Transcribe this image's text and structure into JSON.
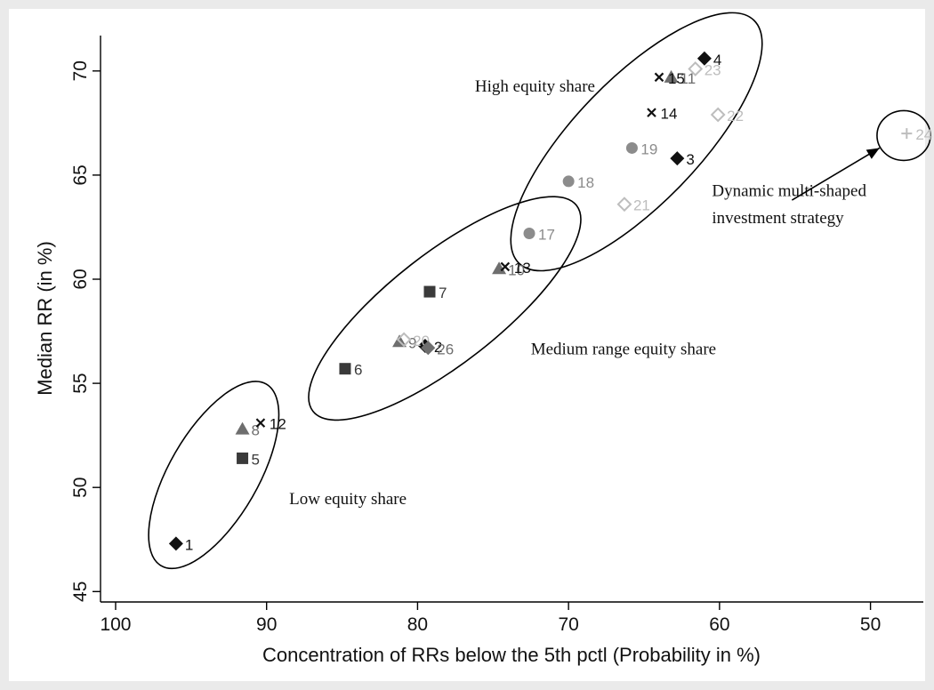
{
  "chart_data": {
    "type": "scatter",
    "xlabel": "Concentration of RRs below the 5th pctl (Probability in %)",
    "ylabel": "Median RR (in %)",
    "x_reversed": true,
    "xlim": [
      101,
      46.5
    ],
    "ylim": [
      44.5,
      71.7
    ],
    "xticks": [
      100,
      90,
      80,
      70,
      60,
      50
    ],
    "yticks": [
      45,
      50,
      55,
      60,
      65,
      70
    ],
    "grid": false,
    "colors": {
      "black": "#111111",
      "darkgray": "#3a3a3a",
      "midgray": "#6e6e6e",
      "lightgray": "#8c8c8c",
      "pale": "#bdbdbd"
    },
    "points": [
      {
        "label": "1",
        "x": 96.0,
        "y": 47.3,
        "marker": "diamond-filled",
        "color": "black"
      },
      {
        "label": "2",
        "x": 79.5,
        "y": 56.8,
        "marker": "diamond-filled",
        "color": "black"
      },
      {
        "label": "3",
        "x": 62.8,
        "y": 65.8,
        "marker": "diamond-filled",
        "color": "black"
      },
      {
        "label": "4",
        "x": 61.0,
        "y": 70.6,
        "marker": "diamond-filled",
        "color": "black"
      },
      {
        "label": "5",
        "x": 91.6,
        "y": 51.4,
        "marker": "square",
        "color": "darkgray"
      },
      {
        "label": "6",
        "x": 84.8,
        "y": 55.7,
        "marker": "square",
        "color": "darkgray"
      },
      {
        "label": "7",
        "x": 79.2,
        "y": 59.4,
        "marker": "square",
        "color": "darkgray"
      },
      {
        "label": "8",
        "x": 91.6,
        "y": 52.8,
        "marker": "triangle",
        "color": "midgray"
      },
      {
        "label": "9",
        "x": 81.2,
        "y": 57.0,
        "marker": "triangle",
        "color": "midgray"
      },
      {
        "label": "10",
        "x": 74.6,
        "y": 60.5,
        "marker": "triangle",
        "color": "midgray"
      },
      {
        "label": "11",
        "x": 63.2,
        "y": 69.7,
        "marker": "triangle",
        "color": "midgray"
      },
      {
        "label": "12",
        "x": 90.4,
        "y": 53.1,
        "marker": "x",
        "color": "black"
      },
      {
        "label": "13",
        "x": 74.2,
        "y": 60.6,
        "marker": "x",
        "color": "black"
      },
      {
        "label": "14",
        "x": 64.5,
        "y": 68.0,
        "marker": "x",
        "color": "black"
      },
      {
        "label": "15",
        "x": 64.0,
        "y": 69.7,
        "marker": "x",
        "color": "black"
      },
      {
        "label": "17",
        "x": 72.6,
        "y": 62.2,
        "marker": "circle",
        "color": "lightgray"
      },
      {
        "label": "18",
        "x": 70.0,
        "y": 64.7,
        "marker": "circle",
        "color": "lightgray"
      },
      {
        "label": "19",
        "x": 65.8,
        "y": 66.3,
        "marker": "circle",
        "color": "lightgray"
      },
      {
        "label": "20",
        "x": 80.9,
        "y": 57.1,
        "marker": "diamond-hollow",
        "color": "pale"
      },
      {
        "label": "21",
        "x": 66.3,
        "y": 63.6,
        "marker": "diamond-hollow",
        "color": "pale"
      },
      {
        "label": "22",
        "x": 60.1,
        "y": 67.9,
        "marker": "diamond-hollow",
        "color": "pale"
      },
      {
        "label": "23",
        "x": 61.6,
        "y": 70.1,
        "marker": "diamond-hollow",
        "color": "pale"
      },
      {
        "label": "24",
        "x": 47.6,
        "y": 67.0,
        "marker": "plus",
        "color": "pale"
      },
      {
        "label": "26",
        "x": 79.3,
        "y": 56.7,
        "marker": "diamond-filled",
        "color": "midgray"
      }
    ],
    "annotations": [
      {
        "text": "High equity share",
        "x": 76.2,
        "y": 69.0
      },
      {
        "text": "Medium range equity share",
        "x": 72.5,
        "y": 56.4
      },
      {
        "text": "Low equity share",
        "x": 88.5,
        "y": 49.2
      },
      {
        "text": "Dynamic   multi-shaped",
        "x": 60.5,
        "y": 64.0
      },
      {
        "text": "investment strategy",
        "x": 60.5,
        "y": 62.7
      }
    ],
    "ellipses": [
      {
        "name": "high",
        "cx": 65.5,
        "cy": 66.6,
        "rx": 190,
        "ry": 70,
        "angle": -46
      },
      {
        "name": "medium",
        "cx": 78.2,
        "cy": 58.6,
        "rx": 188,
        "ry": 62,
        "angle": -38
      },
      {
        "name": "low",
        "cx": 93.5,
        "cy": 50.6,
        "rx": 118,
        "ry": 50,
        "angle": -60
      },
      {
        "name": "dynamic",
        "cx": 47.8,
        "cy": 66.9,
        "rx": 30,
        "ry": 28,
        "angle": 0
      }
    ],
    "arrow": {
      "from": [
        55.2,
        63.8
      ],
      "to": [
        49.4,
        66.3
      ]
    }
  }
}
